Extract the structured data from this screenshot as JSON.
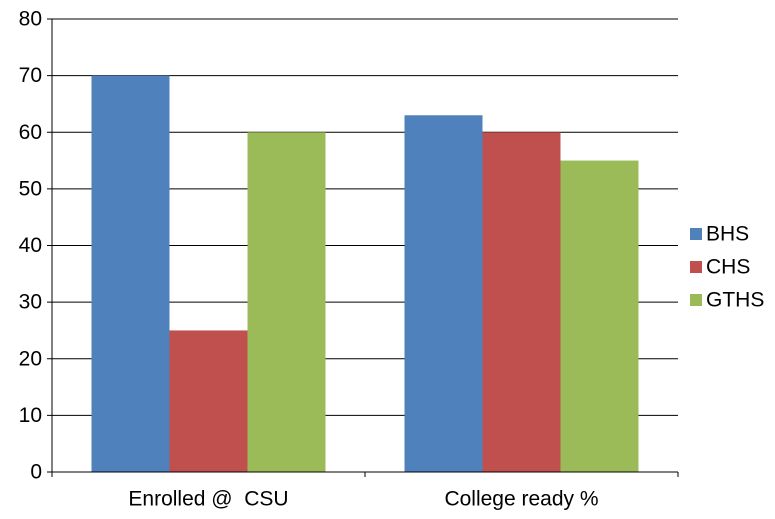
{
  "chart_data": {
    "type": "bar",
    "categories": [
      "Enrolled @  CSU",
      "College ready %"
    ],
    "series": [
      {
        "name": "BHS",
        "values": [
          70,
          63
        ],
        "color": "#4F81BD"
      },
      {
        "name": "CHS",
        "values": [
          25,
          60
        ],
        "color": "#C0504D"
      },
      {
        "name": "GTHS",
        "values": [
          60,
          55
        ],
        "color": "#9BBB59"
      }
    ],
    "ylim": [
      0,
      80
    ],
    "y_ticks": [
      0,
      10,
      20,
      30,
      40,
      50,
      60,
      70,
      80
    ],
    "grid": "horizontal major gridlines",
    "legend_position": "right",
    "title": "",
    "xlabel": "",
    "ylabel": ""
  }
}
